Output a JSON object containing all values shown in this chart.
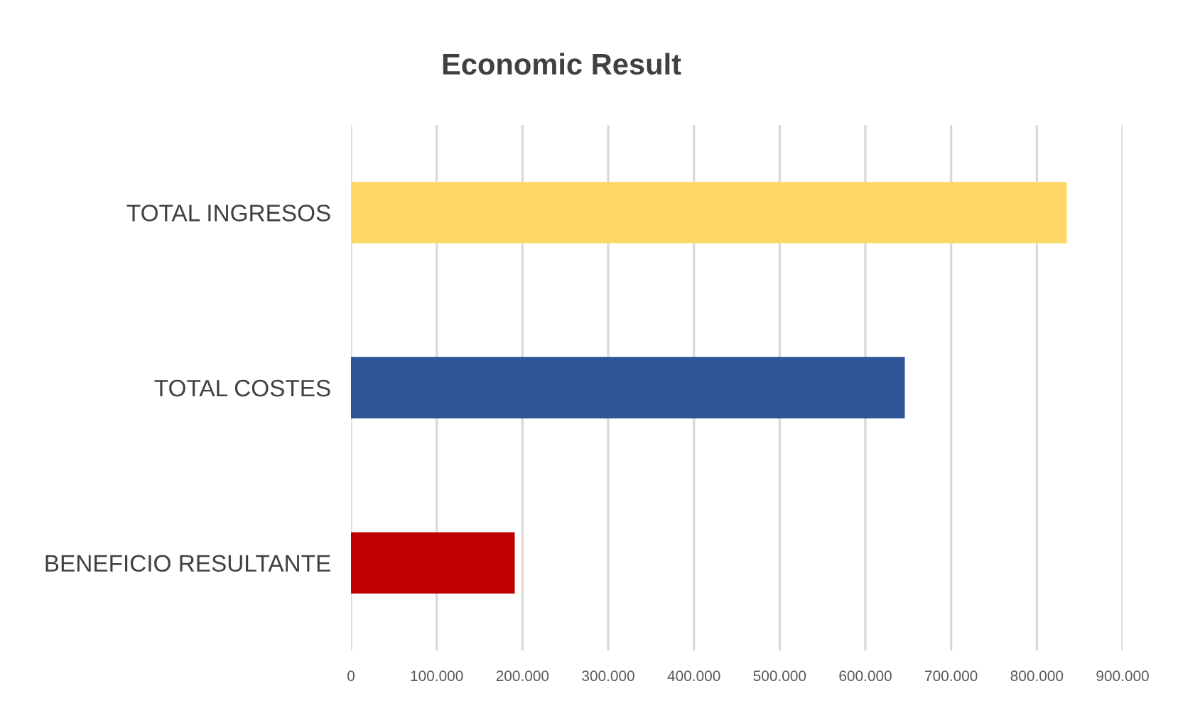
{
  "chart_data": {
    "type": "bar",
    "orientation": "horizontal",
    "title": "Economic Result",
    "categories": [
      "TOTAL INGRESOS",
      "TOTAL COSTES",
      "BENEFICIO RESULTANTE"
    ],
    "values": [
      835000,
      646000,
      191000
    ],
    "colors": [
      "#fdd767",
      "#2f5597",
      "#c00000"
    ],
    "xlim": [
      0,
      900000
    ],
    "xticks": [
      0,
      {
        "value": 100000,
        "label": "100.000"
      },
      {
        "value": 200000,
        "label": "200.000"
      },
      {
        "value": 300000,
        "label": "300.000"
      },
      {
        "value": 400000,
        "label": "400.000"
      },
      {
        "value": 500000,
        "label": "500.000"
      },
      {
        "value": 600000,
        "label": "600.000"
      },
      {
        "value": 700000,
        "label": "700.000"
      },
      {
        "value": 800000,
        "label": "800.000"
      },
      {
        "value": 900000,
        "label": "900.000"
      }
    ],
    "grid": "x",
    "legend": false
  }
}
